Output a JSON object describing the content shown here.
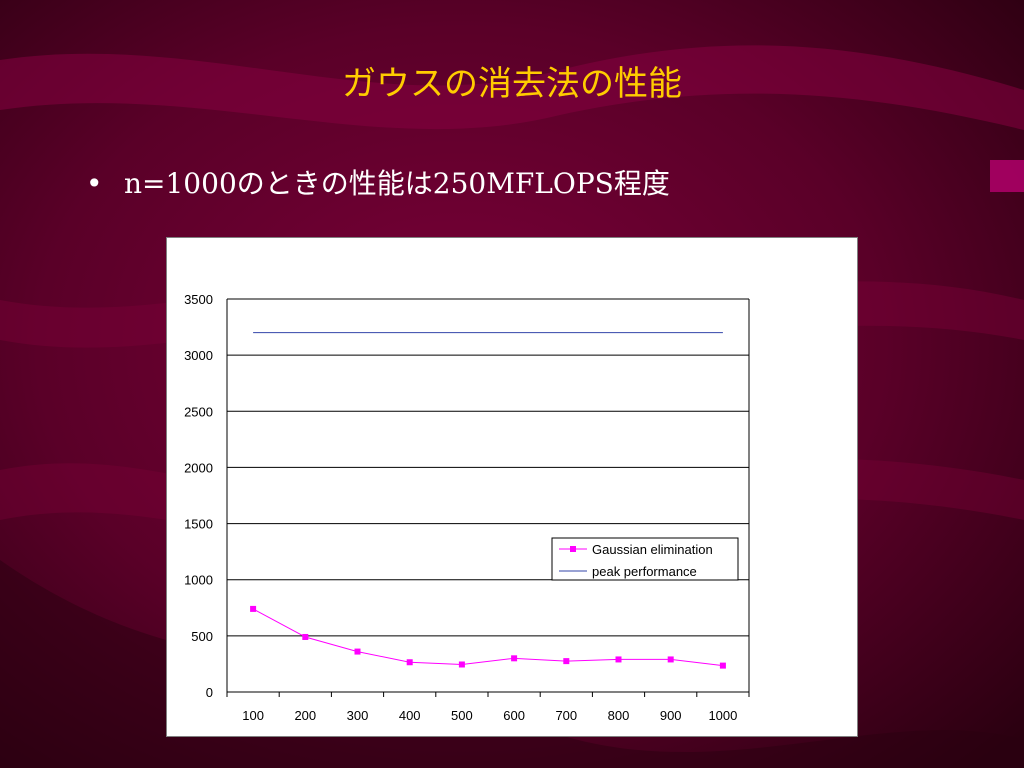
{
  "slide": {
    "title": "ガウスの消去法の性能",
    "bullet_symbol": "•",
    "bullet_text": "n=1000のときの性能は250MFLOPS程度"
  },
  "colors": {
    "background": "#4a0020",
    "title": "#ffcc00",
    "gaussian_series": "#ff00ff",
    "peak_series": "#3344aa"
  },
  "chart_data": {
    "type": "line",
    "x": [
      100,
      200,
      300,
      400,
      500,
      600,
      700,
      800,
      900,
      1000
    ],
    "categories": [
      "100",
      "200",
      "300",
      "400",
      "500",
      "600",
      "700",
      "800",
      "900",
      "1000"
    ],
    "series": [
      {
        "name": "Gaussian elimination",
        "values": [
          740,
          490,
          360,
          265,
          245,
          300,
          275,
          290,
          290,
          235
        ],
        "color": "#ff00ff",
        "marker": "square"
      },
      {
        "name": "peak performance",
        "values": [
          3200,
          3200,
          3200,
          3200,
          3200,
          3200,
          3200,
          3200,
          3200,
          3200
        ],
        "color": "#3344aa",
        "marker": "none"
      }
    ],
    "ylim": [
      0,
      3500
    ],
    "yticks": [
      "0",
      "500",
      "1000",
      "1500",
      "2000",
      "2500",
      "3000",
      "3500"
    ],
    "grid": true,
    "legend_position": "right"
  }
}
